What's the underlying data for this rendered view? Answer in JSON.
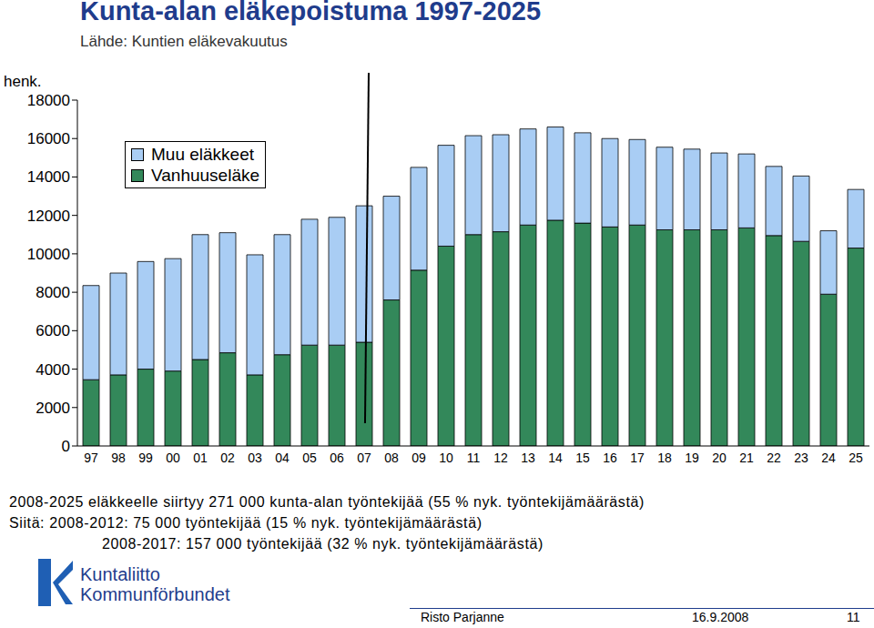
{
  "chart_data": {
    "type": "bar",
    "title": "Kunta-alan eläkepoistuma 1997-2025",
    "subtitle": "Lähde: Kuntien eläkevakuutus",
    "y_label": "henk.",
    "categories": [
      "97",
      "98",
      "99",
      "00",
      "01",
      "02",
      "03",
      "04",
      "05",
      "06",
      "07",
      "08",
      "09",
      "10",
      "11",
      "12",
      "13",
      "14",
      "15",
      "16",
      "17",
      "18",
      "19",
      "20",
      "21",
      "22",
      "23",
      "24",
      "25"
    ],
    "series": [
      {
        "name": "Vanhuuseläke",
        "color": "#33885a",
        "values": [
          3450,
          3700,
          4000,
          3900,
          4500,
          4850,
          3700,
          4750,
          5250,
          5250,
          5400,
          7600,
          9150,
          10400,
          11000,
          11150,
          11500,
          11750,
          11600,
          11400,
          11500,
          11250,
          11250,
          11250,
          11350,
          10950,
          10650,
          7900,
          10300
        ]
      },
      {
        "name": "Muu eläkkeet",
        "color": "#a9cdf4",
        "values": [
          4900,
          5300,
          5600,
          5850,
          6500,
          6250,
          6250,
          6250,
          6550,
          6650,
          7100,
          5400,
          5350,
          5250,
          5150,
          5050,
          5000,
          4850,
          4700,
          4600,
          4450,
          4300,
          4200,
          4000,
          3850,
          3600,
          3400,
          3300,
          3050
        ]
      }
    ],
    "stacked": true,
    "ylim": [
      0,
      18000
    ],
    "yticks": [
      0,
      2000,
      4000,
      6000,
      8000,
      10000,
      12000,
      14000,
      16000,
      18000
    ],
    "grid": false,
    "legend": "upper left",
    "annotations": [
      "2008-2025 eläkkeelle siirtyy 271 000 kunta-alan työntekijää (55 % nyk. työntekijämäärästä)",
      "Siitä: 2008-2012: 75 000 työntekijää (15 % nyk. työntekijämäärästä)",
      "2008-2017: 157 000 työntekijää (32 % nyk. työntekijämäärästä)"
    ],
    "logo": [
      "Kuntaliitto",
      "Kommunförbundet"
    ],
    "footer": [
      "Risto Parjanne",
      "16.9.2008",
      "11"
    ]
  }
}
